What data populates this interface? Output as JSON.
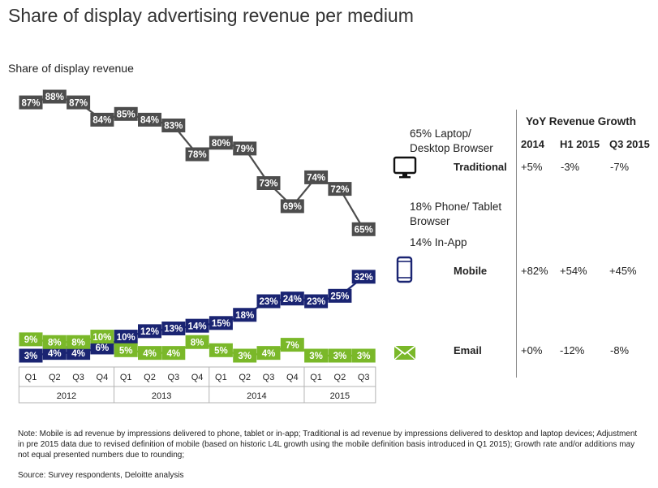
{
  "title": "Share of display advertising revenue per medium",
  "subtitle": "Share of display revenue",
  "legend": {
    "traditional_line1": "65% Laptop/",
    "traditional_line2": "Desktop Browser",
    "mobile_line1": "18% Phone/ Tablet",
    "mobile_line2": "Browser",
    "mobile_line3": "14% In-App"
  },
  "icons": {
    "traditional": "monitor-icon",
    "mobile": "phone-icon",
    "email": "envelope-icon"
  },
  "yoy": {
    "title": "YoY Revenue Growth",
    "headers": [
      "2014",
      "H1 2015",
      "Q3 2015"
    ],
    "rows": [
      {
        "label": "Traditional",
        "values": [
          "+5%",
          "-3%",
          "-7%"
        ]
      },
      {
        "label": "Mobile",
        "values": [
          "+82%",
          "+54%",
          "+45%"
        ]
      },
      {
        "label": "Email",
        "values": [
          "+0%",
          "-12%",
          "-8%"
        ]
      }
    ]
  },
  "note": "Note: Mobile is ad revenue by impressions delivered to phone, tablet or in-app; Traditional is ad revenue by impressions delivered to desktop and laptop devices; Adjustment in pre 2015 data due to revised definition of mobile (based on historic L4L growth using the mobile definition basis introduced in Q1 2015); Growth rate and/or additions may not equal presented numbers due to rounding;",
  "source": "Source: Survey respondents, Deloitte analysis",
  "chart_data": {
    "type": "line",
    "title": "Share of display advertising revenue per medium",
    "ylabel": "Share of display revenue",
    "quarters": [
      "Q1",
      "Q2",
      "Q3",
      "Q4",
      "Q1",
      "Q2",
      "Q3",
      "Q4",
      "Q1",
      "Q2",
      "Q3",
      "Q4",
      "Q1",
      "Q2",
      "Q3"
    ],
    "years": [
      {
        "label": "2012",
        "quarters": 4
      },
      {
        "label": "2013",
        "quarters": 4
      },
      {
        "label": "2014",
        "quarters": 4
      },
      {
        "label": "2015",
        "quarters": 3
      }
    ],
    "series": [
      {
        "name": "Traditional",
        "color": "#4d4d4d",
        "values": [
          87,
          88,
          87,
          84,
          85,
          84,
          83,
          78,
          80,
          79,
          73,
          69,
          74,
          72,
          65
        ]
      },
      {
        "name": "Mobile",
        "color": "#1a2472",
        "values": [
          3,
          4,
          4,
          6,
          10,
          12,
          13,
          14,
          15,
          18,
          23,
          24,
          23,
          25,
          32
        ]
      },
      {
        "name": "Email",
        "color": "#7ab829",
        "values": [
          9,
          8,
          8,
          10,
          5,
          4,
          4,
          8,
          5,
          3,
          4,
          7,
          3,
          3,
          3
        ]
      }
    ]
  }
}
